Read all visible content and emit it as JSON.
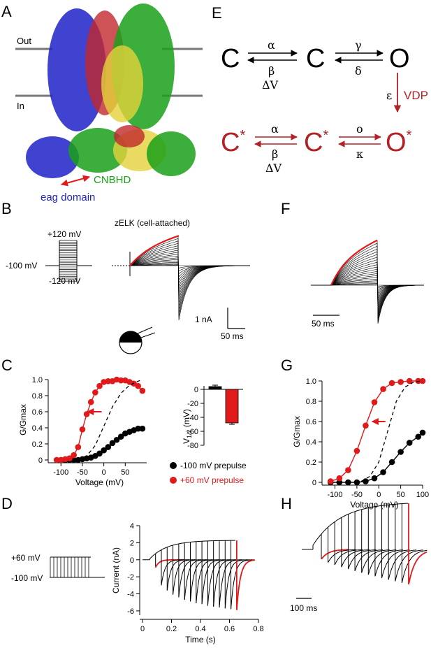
{
  "panel_letters": {
    "a": "A",
    "b": "B",
    "c": "C",
    "d": "D",
    "e": "E",
    "f": "F",
    "g": "G",
    "h": "H"
  },
  "panel_a": {
    "out": "Out",
    "in": "In",
    "cnbhd": "CNBHD",
    "eag": "eag domain"
  },
  "panel_e": {
    "closed": "C",
    "open": "O",
    "closed_star": "C*",
    "open_star": "O*",
    "star": "*",
    "alpha": "α",
    "beta": "β",
    "gamma": "γ",
    "delta": "δ",
    "epsilon": "ε",
    "omicron": "ο",
    "kappa": "κ",
    "dv": "ΔV",
    "vdp": "VDP"
  },
  "panel_b": {
    "title": "zELK (cell-attached)",
    "v_top": "+120 mV",
    "v_hold": "-100 mV",
    "v_bottom": "-120 mV",
    "scale_current": "1 nA",
    "scale_time": "50 ms"
  },
  "panel_f": {
    "scale_time": "50 ms"
  },
  "panel_c_bar": {
    "ylabel": "V1/2 (mV)",
    "ylabel_main": "V",
    "ylabel_sub": "1/2",
    "ylabel_unit": "(mV)",
    "yticks": [
      "0",
      "-20",
      "-40",
      "-60",
      "-80"
    ]
  },
  "legend": {
    "black": "-100 mV prepulse",
    "red": "+60 mV prepulse"
  },
  "panel_d": {
    "v_top": "+60 mV",
    "v_hold": "-100 mV"
  },
  "panel_h": {
    "scale_time": "100 ms"
  },
  "colors": {
    "black": "#000000",
    "red": "#e0191b",
    "dark_red": "#b32025",
    "green": "#1aa01a",
    "blue": "#1e22c8",
    "gray": "#808080"
  },
  "chart_data": [
    {
      "type": "scatter",
      "panel": "C",
      "xlabel": "Voltage (mV)",
      "ylabel": "G/Gmax",
      "xlim": [
        -120,
        100
      ],
      "ylim": [
        0,
        1.0
      ],
      "xticks": [
        "-100",
        "-50",
        "0",
        "50"
      ],
      "yticks": [
        "0",
        "0.2",
        "0.4",
        "0.6",
        "0.8",
        "1.0"
      ],
      "series": [
        {
          "name": "-100 mV prepulse",
          "color": "#000000",
          "x": [
            -110,
            -100,
            -90,
            -80,
            -70,
            -60,
            -50,
            -40,
            -30,
            -20,
            -10,
            0,
            10,
            20,
            30,
            40,
            50,
            60,
            70,
            80,
            90
          ],
          "y": [
            0,
            0,
            0,
            0,
            0,
            0,
            0.01,
            0.02,
            0.03,
            0.05,
            0.08,
            0.12,
            0.16,
            0.21,
            0.25,
            0.29,
            0.33,
            0.35,
            0.37,
            0.39,
            0.39
          ]
        },
        {
          "name": "+60 mV prepulse",
          "color": "#e0191b",
          "x": [
            -110,
            -100,
            -90,
            -80,
            -70,
            -60,
            -50,
            -40,
            -30,
            -20,
            -10,
            0,
            10,
            20,
            30,
            40,
            50,
            60,
            70,
            80,
            90
          ],
          "y": [
            0,
            0,
            0.01,
            0.02,
            0.06,
            0.16,
            0.38,
            0.57,
            0.72,
            0.84,
            0.92,
            0.97,
            0.98,
            0.98,
            1.0,
            0.99,
            0.99,
            0.97,
            0.95,
            0.92,
            0.86
          ]
        },
        {
          "name": "dashed",
          "color": "#000000",
          "style": "dashed",
          "x": [
            -60,
            -40,
            -20,
            0,
            20,
            40,
            60,
            80,
            90
          ],
          "y": [
            0.01,
            0.05,
            0.18,
            0.42,
            0.66,
            0.83,
            0.93,
            0.98,
            1.0
          ]
        }
      ]
    },
    {
      "type": "bar",
      "panel": "C-inset",
      "ylabel": "V1/2 (mV)",
      "ylim": [
        -80,
        5
      ],
      "series": [
        {
          "color": "#000000",
          "values": [
            4
          ]
        },
        {
          "color": "#e0191b",
          "values": [
            -48
          ]
        }
      ]
    },
    {
      "type": "scatter",
      "panel": "G",
      "xlabel": "Voltage (mV)",
      "ylabel": "G/Gmax",
      "xlim": [
        -120,
        100
      ],
      "ylim": [
        0,
        1.0
      ],
      "xticks": [
        "-100",
        "-50",
        "0",
        "50",
        "100"
      ],
      "yticks": [
        "0",
        "0.2",
        "0.4",
        "0.6",
        "0.8",
        "1.0"
      ],
      "series": [
        {
          "name": "black",
          "color": "#000000",
          "x": [
            -110,
            -90,
            -70,
            -50,
            -30,
            -10,
            10,
            30,
            50,
            70,
            90,
            100
          ],
          "y": [
            0,
            0,
            0,
            0,
            0.01,
            0.04,
            0.1,
            0.2,
            0.3,
            0.39,
            0.45,
            0.49
          ]
        },
        {
          "name": "red",
          "color": "#e0191b",
          "x": [
            -110,
            -90,
            -70,
            -50,
            -30,
            -10,
            10,
            30,
            50,
            70,
            90,
            100
          ],
          "y": [
            0.01,
            0.04,
            0.12,
            0.31,
            0.56,
            0.79,
            0.92,
            0.98,
            0.99,
            1.0,
            1.0,
            1.0
          ]
        },
        {
          "name": "dashed",
          "color": "#000000",
          "style": "dashed",
          "x": [
            -40,
            -20,
            0,
            20,
            40,
            60,
            80,
            100
          ],
          "y": [
            0.01,
            0.06,
            0.2,
            0.5,
            0.8,
            0.94,
            0.99,
            1.0
          ]
        }
      ]
    },
    {
      "type": "line",
      "panel": "D",
      "xlabel": "Time (s)",
      "ylabel": "Current (nA)",
      "xlim": [
        0,
        0.8
      ],
      "ylim": [
        -6.5,
        4
      ],
      "xticks": [
        "0",
        "0.2",
        "0.4",
        "0.6",
        "0.8"
      ],
      "yticks": [
        "-6",
        "-4",
        "-2",
        "0",
        "2",
        "4"
      ],
      "pulse_ends": [
        0.09,
        0.13,
        0.17,
        0.21,
        0.25,
        0.29,
        0.33,
        0.37,
        0.41,
        0.45,
        0.49,
        0.53,
        0.57,
        0.61,
        0.65
      ],
      "tail_peaks": [
        -0.9,
        -3.0,
        -3.6,
        -4.1,
        -4.4,
        -4.7,
        -4.9,
        -5.1,
        -5.2,
        -5.4,
        -5.5,
        -5.6,
        -5.7,
        -5.8,
        -5.9
      ],
      "envelope_max": 2.3
    }
  ]
}
